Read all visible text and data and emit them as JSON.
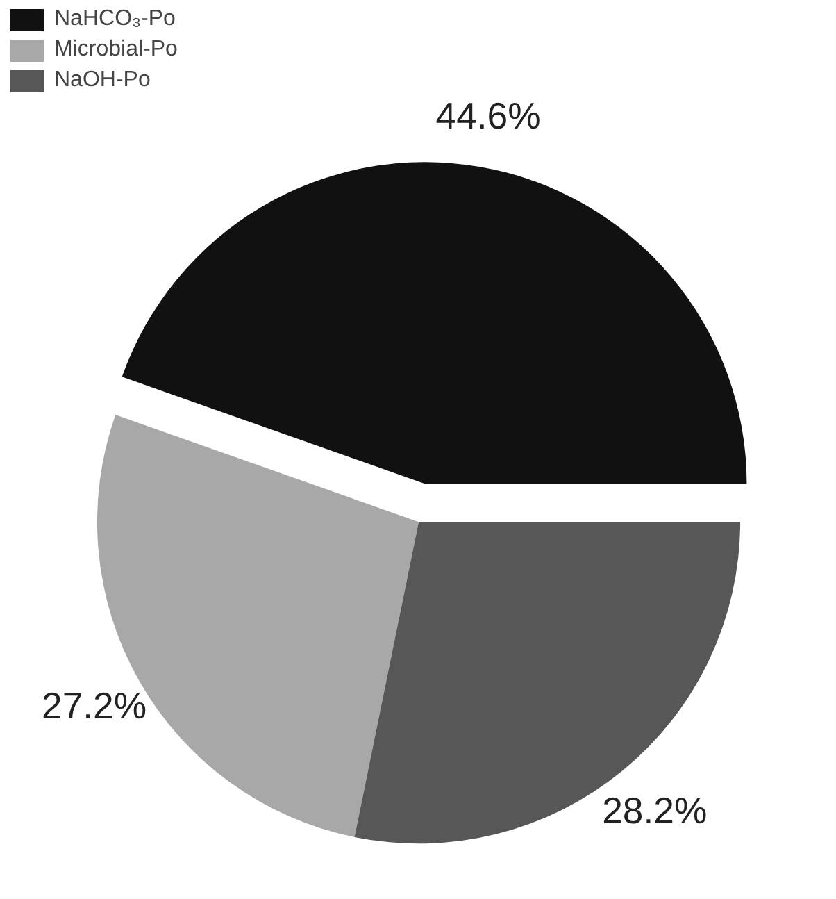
{
  "chart_data": {
    "type": "pie",
    "categories": [
      "NaHCO₃-Po",
      "Microbial-Po",
      "NaOH-Po"
    ],
    "values": [
      44.6,
      27.2,
      28.2
    ],
    "colors": [
      "#111111",
      "#a8a8a8",
      "#575757"
    ],
    "value_labels": [
      "44.6%",
      "27.2%",
      "28.2%"
    ],
    "legend": "top left"
  }
}
